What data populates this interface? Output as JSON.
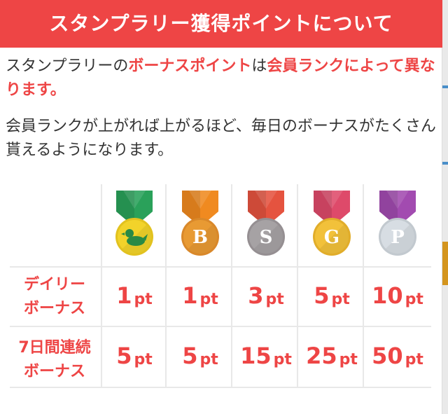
{
  "header": {
    "title": "スタンプラリー獲得ポイントについて"
  },
  "intro": {
    "p1_a": "スタンプラリーの",
    "p1_b": "ボーナスポイント",
    "p1_c": "は",
    "p1_d": "会員ランクによって異なります。",
    "p2": "会員ランクが上がれば上がるほど、毎日のボーナスがたくさん貰えるようになります。"
  },
  "medals": [
    {
      "icon": "duck-icon",
      "letter": "",
      "ribbon": "#2aa15a",
      "face": "#f2d32a",
      "rim": "#e2c21f"
    },
    {
      "icon": "bronze-medal-icon",
      "letter": "B",
      "ribbon": "#f08a20",
      "face": "#e89a33",
      "rim": "#d9882a"
    },
    {
      "icon": "silver-medal-icon",
      "letter": "S",
      "ribbon": "#e5533f",
      "face": "#a6a2a4",
      "rim": "#958f92"
    },
    {
      "icon": "gold-medal-icon",
      "letter": "G",
      "ribbon": "#de4a6a",
      "face": "#f2c13a",
      "rim": "#e1ad2a"
    },
    {
      "icon": "platinum-medal-icon",
      "letter": "P",
      "ribbon": "#a24bb0",
      "face": "#d7dde3",
      "rim": "#c2c9cf"
    }
  ],
  "rows": [
    {
      "label_l1": "デイリー",
      "label_l2": "ボーナス",
      "values": [
        "1",
        "1",
        "3",
        "5",
        "10"
      ]
    },
    {
      "label_l1": "7日間連続",
      "label_l2": "ボーナス",
      "values": [
        "5",
        "5",
        "15",
        "25",
        "50"
      ]
    }
  ],
  "unit": "pt"
}
